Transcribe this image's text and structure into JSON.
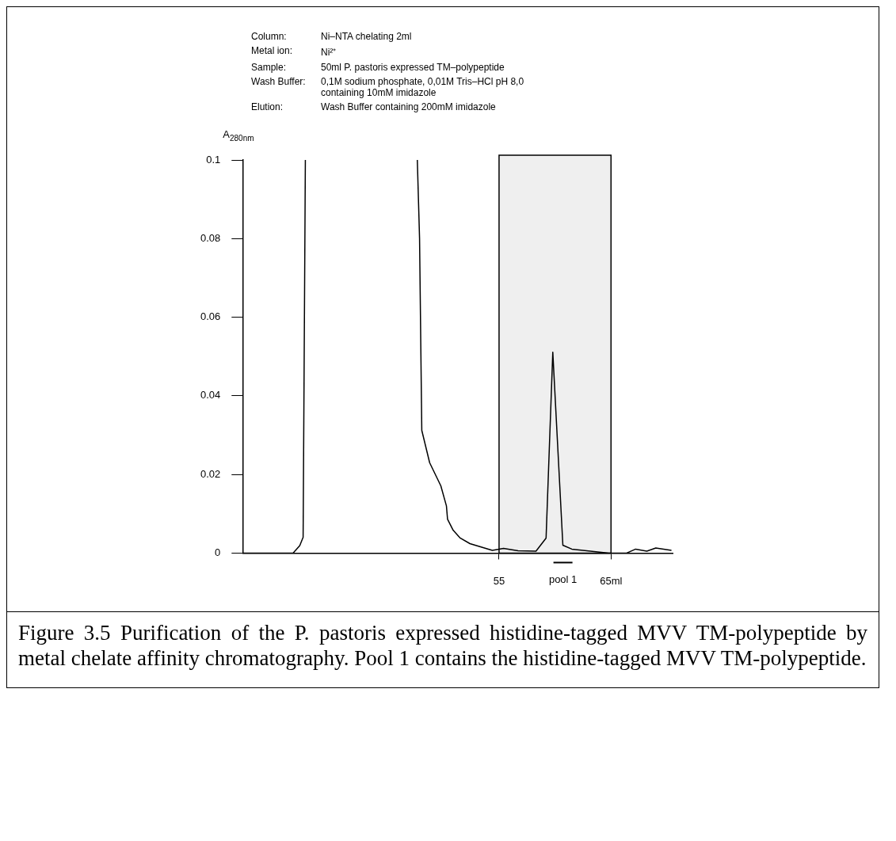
{
  "chart_data": {
    "type": "line",
    "ylabel": "A$_{280nm}$",
    "x": [
      32.1,
      36.6,
      37.2,
      37.5,
      37.7,
      37.8,
      47.7,
      47.9,
      48.1,
      48.8,
      49.8,
      50.3,
      50.4,
      50.9,
      51.5,
      52.4,
      54.4,
      55.4,
      56.7,
      58.3,
      59.2,
      59.8,
      60.7,
      61.5,
      64.8,
      66.4,
      67.2,
      68.2,
      69.0,
      70.4
    ],
    "series": [
      {
        "color": "#000000",
        "values": [
          0,
          0,
          0.0019,
          0.004,
          0.1,
          null,
          0.1,
          0.08,
          0.0312,
          0.023,
          0.0171,
          0.012,
          0.0086,
          0.0058,
          0.0039,
          0.0024,
          0.0007,
          0.0012,
          0.0006,
          0.0005,
          0.0038,
          0.0511,
          0.002,
          0.001,
          0,
          0,
          0.001,
          0.0005,
          0.0013,
          0.0007
        ]
      }
    ],
    "xlim": [
      32.1,
      70.5
    ],
    "xticks": [
      55,
      {
        "value": 65,
        "label": "65ml"
      }
    ],
    "ylim": [
      0,
      0.1
    ],
    "yticks": [
      0,
      0.02,
      0.04,
      0.06,
      0.08,
      0.1
    ],
    "bands": [
      {
        "axis": "x",
        "from": 55,
        "to": 65,
        "color": "#000000"
      }
    ],
    "grid": false,
    "legend": false,
    "marker": "none",
    "line_style": "solid",
    "annotations": [
      "Column: Ni–NTA chelating 2ml",
      "Metal ion: Ni²⁺",
      "Sample: 50ml P. pastoris expressed TM–polypeptide",
      "Wash Buffer: 0,1M sodium phosphate, 0,01M Tris–HCl pH 8,0 containing 10mM imidazole",
      "Elution: Wash Buffer containing 200mM imidazole",
      "pool 1",
      "Figure 3.5 Purification of the P. pastoris expressed histidine-tagged MVV TM-polypeptide by metal chelate affinity chromatography. Pool 1 contains the histidine-tagged MVV TM-polypeptide."
    ]
  }
}
